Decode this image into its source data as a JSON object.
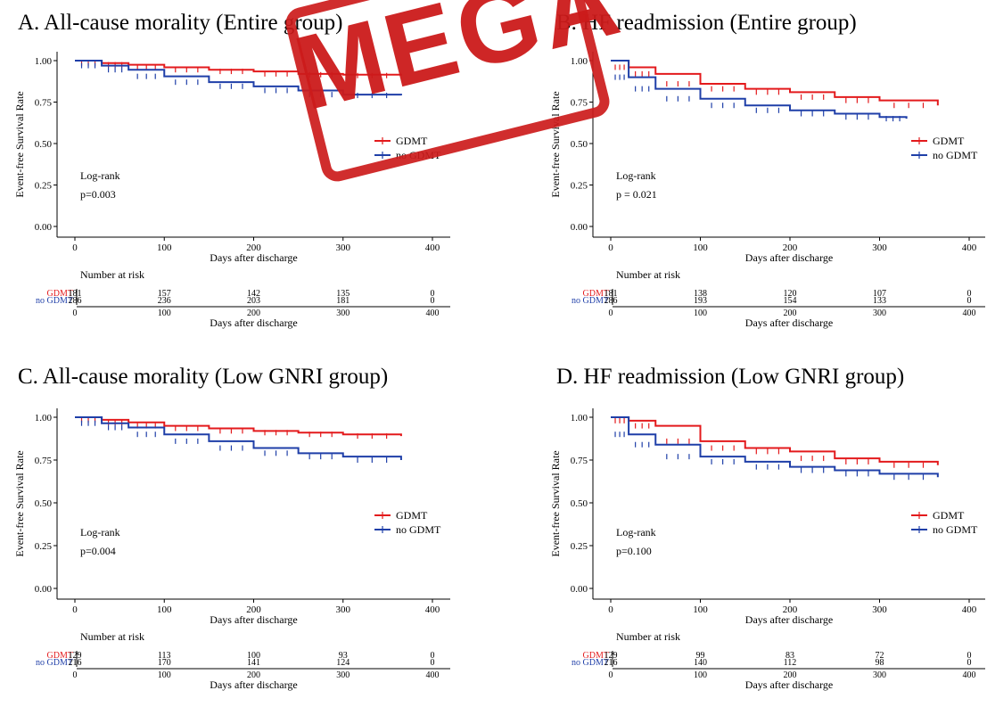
{
  "watermark": {
    "text": "MEGA",
    "color": "#cc1b1b"
  },
  "colors": {
    "gdmt": "#e31a1c",
    "no_gdmt": "#1f3fa8"
  },
  "chart_data": [
    {
      "type": "line",
      "title": "A. All-cause morality (Entire group)",
      "xlabel": "Days after discharge",
      "ylabel": "Event-free Survival Rate",
      "xlim": [
        0,
        400
      ],
      "ylim": [
        0,
        1
      ],
      "xticks": [
        "0",
        "100",
        "200",
        "300",
        "400"
      ],
      "yticks": [
        "0.00",
        "0.25",
        "0.50",
        "0.75",
        "1.00"
      ],
      "legend": [
        "GDMT",
        "no GDMT"
      ],
      "test_label": "Log-rank",
      "p_value": "p=0.003",
      "series": [
        {
          "name": "GDMT",
          "x": [
            0,
            30,
            60,
            100,
            150,
            200,
            250,
            300,
            365
          ],
          "y": [
            1.0,
            0.985,
            0.975,
            0.96,
            0.945,
            0.935,
            0.92,
            0.915,
            0.91
          ]
        },
        {
          "name": "no GDMT",
          "x": [
            0,
            30,
            60,
            100,
            150,
            200,
            250,
            300,
            365
          ],
          "y": [
            1.0,
            0.97,
            0.945,
            0.905,
            0.87,
            0.845,
            0.82,
            0.795,
            0.79
          ]
        }
      ],
      "risk_table": {
        "title": "Number at risk",
        "rows": [
          {
            "name": "GDMT",
            "values": [
              "181",
              "157",
              "142",
              "135",
              "0"
            ]
          },
          {
            "name": "no GDMT",
            "values": [
              "286",
              "236",
              "203",
              "181",
              "0"
            ]
          }
        ],
        "xticks": [
          "0",
          "100",
          "200",
          "300",
          "400"
        ],
        "xlabel": "Days after discharge"
      }
    },
    {
      "type": "line",
      "title": "B. HF readmission (Entire group)",
      "xlabel": "Days after discharge",
      "ylabel": "Event-free Survival Rate",
      "xlim": [
        0,
        400
      ],
      "ylim": [
        0,
        1
      ],
      "xticks": [
        "0",
        "100",
        "200",
        "300",
        "400"
      ],
      "yticks": [
        "0.00",
        "0.25",
        "0.50",
        "0.75",
        "1.00"
      ],
      "legend": [
        "GDMT",
        "no GDMT"
      ],
      "test_label": "Log-rank",
      "p_value": "p = 0.021",
      "series": [
        {
          "name": "GDMT",
          "x": [
            0,
            20,
            50,
            100,
            150,
            200,
            250,
            300,
            365
          ],
          "y": [
            1.0,
            0.96,
            0.92,
            0.86,
            0.83,
            0.81,
            0.78,
            0.76,
            0.73
          ]
        },
        {
          "name": "no GDMT",
          "x": [
            0,
            20,
            50,
            100,
            150,
            200,
            250,
            300,
            330
          ],
          "y": [
            1.0,
            0.9,
            0.83,
            0.77,
            0.73,
            0.7,
            0.68,
            0.66,
            0.65
          ]
        }
      ],
      "risk_table": {
        "title": "Number at risk",
        "rows": [
          {
            "name": "GDMT",
            "values": [
              "181",
              "138",
              "120",
              "107",
              "0"
            ]
          },
          {
            "name": "no GDMT",
            "values": [
              "286",
              "193",
              "154",
              "133",
              "0"
            ]
          }
        ],
        "xticks": [
          "0",
          "100",
          "200",
          "300",
          "400"
        ],
        "xlabel": "Days after discharge"
      }
    },
    {
      "type": "line",
      "title": "C. All-cause morality (Low GNRI group)",
      "xlabel": "Days after discharge",
      "ylabel": "Event-free Survival Rate",
      "xlim": [
        0,
        400
      ],
      "ylim": [
        0,
        1
      ],
      "xticks": [
        "0",
        "100",
        "200",
        "300",
        "400"
      ],
      "yticks": [
        "0.00",
        "0.25",
        "0.50",
        "0.75",
        "1.00"
      ],
      "legend": [
        "GDMT",
        "no GDMT"
      ],
      "test_label": "Log-rank",
      "p_value": "p=0.004",
      "series": [
        {
          "name": "GDMT",
          "x": [
            0,
            30,
            60,
            100,
            150,
            200,
            250,
            300,
            365
          ],
          "y": [
            1.0,
            0.985,
            0.97,
            0.95,
            0.935,
            0.92,
            0.91,
            0.9,
            0.89
          ]
        },
        {
          "name": "no GDMT",
          "x": [
            0,
            30,
            60,
            100,
            150,
            200,
            250,
            300,
            365
          ],
          "y": [
            1.0,
            0.965,
            0.94,
            0.9,
            0.86,
            0.82,
            0.79,
            0.77,
            0.75
          ]
        }
      ],
      "risk_table": {
        "title": "Number at risk",
        "rows": [
          {
            "name": "GDMT",
            "values": [
              "129",
              "113",
              "100",
              "93",
              "0"
            ]
          },
          {
            "name": "no GDMT",
            "values": [
              "216",
              "170",
              "141",
              "124",
              "0"
            ]
          }
        ],
        "xticks": [
          "0",
          "100",
          "200",
          "300",
          "400"
        ],
        "xlabel": "Days after discharge"
      }
    },
    {
      "type": "line",
      "title": "D. HF readmission (Low GNRI group)",
      "xlabel": "Days after discharge",
      "ylabel": "Event-free Survival Rate",
      "xlim": [
        0,
        400
      ],
      "ylim": [
        0,
        1
      ],
      "xticks": [
        "0",
        "100",
        "200",
        "300",
        "400"
      ],
      "yticks": [
        "0.00",
        "0.25",
        "0.50",
        "0.75",
        "1.00"
      ],
      "legend": [
        "GDMT",
        "no GDMT"
      ],
      "test_label": "Log-rank",
      "p_value": "p=0.100",
      "series": [
        {
          "name": "GDMT",
          "x": [
            0,
            20,
            50,
            100,
            150,
            200,
            250,
            300,
            365
          ],
          "y": [
            1.0,
            0.98,
            0.95,
            0.86,
            0.82,
            0.8,
            0.76,
            0.74,
            0.72
          ]
        },
        {
          "name": "no GDMT",
          "x": [
            0,
            20,
            50,
            100,
            150,
            200,
            250,
            300,
            365
          ],
          "y": [
            1.0,
            0.9,
            0.84,
            0.77,
            0.74,
            0.71,
            0.69,
            0.67,
            0.65
          ]
        }
      ],
      "risk_table": {
        "title": "Number at risk",
        "rows": [
          {
            "name": "GDMT",
            "values": [
              "129",
              "99",
              "83",
              "72",
              "0"
            ]
          },
          {
            "name": "no GDMT",
            "values": [
              "216",
              "140",
              "112",
              "98",
              "0"
            ]
          }
        ],
        "xticks": [
          "0",
          "100",
          "200",
          "300",
          "400"
        ],
        "xlabel": "Days after discharge"
      }
    }
  ]
}
